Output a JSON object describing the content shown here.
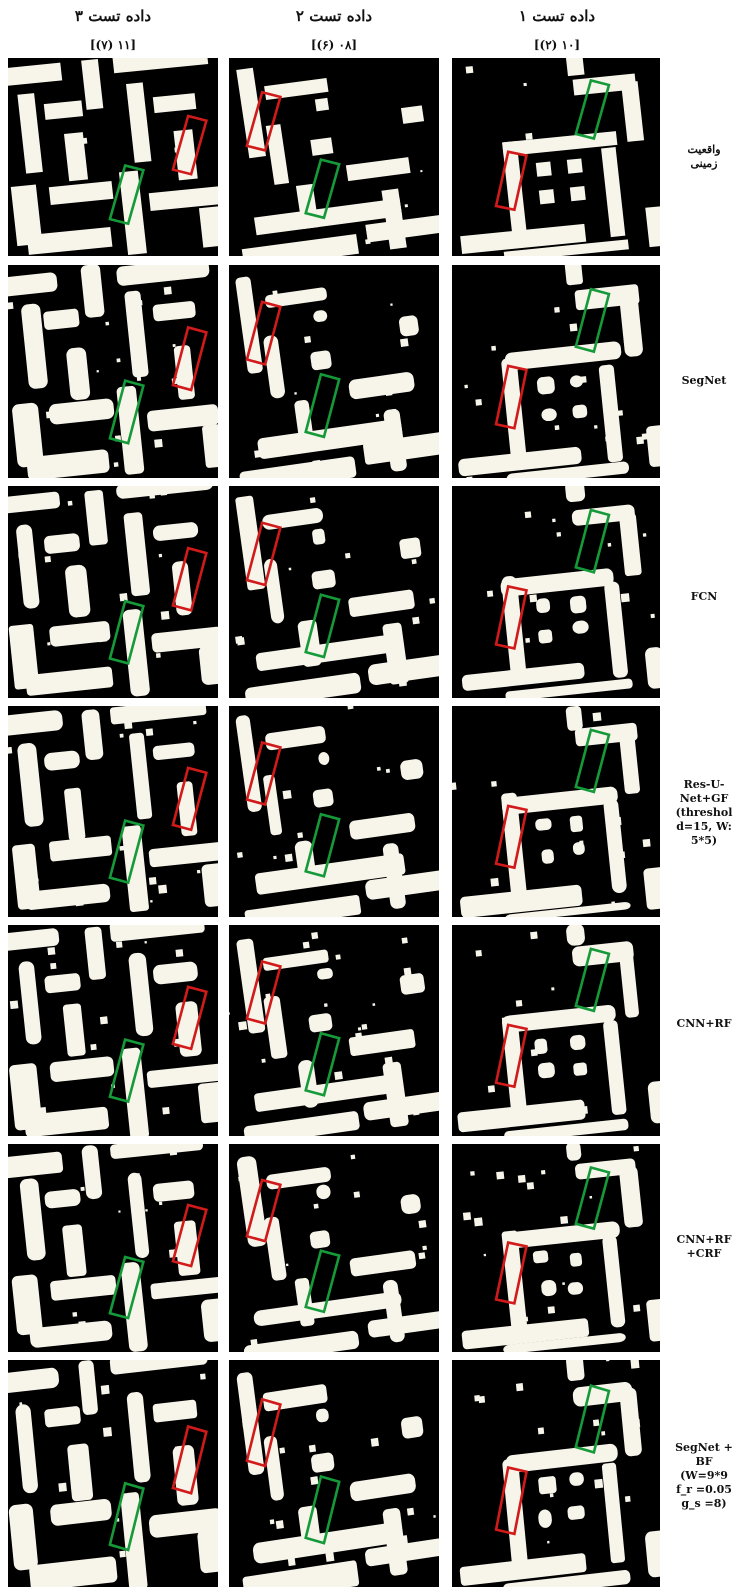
{
  "columns": [
    {
      "title": "داده تست ۳",
      "subtitle": "[(۷) ۱۱]"
    },
    {
      "title": "داده تست ۲",
      "subtitle": "[(۶) ۰۸]"
    },
    {
      "title": "داده تست ۱",
      "subtitle": "[(۲) ۱۰]"
    }
  ],
  "rows": [
    {
      "label": "واقعیت\nزمینی"
    },
    {
      "label": "SegNet"
    },
    {
      "label": "FCN"
    },
    {
      "label": "Res-U-\nNet+GF\n(threshol\nd=15, W:\n5*5)"
    },
    {
      "label": "CNN+RF"
    },
    {
      "label": "CNN+RF\n+CRF"
    },
    {
      "label": "SegNet +\nBF\n(W=9*9\nf_r =0.05\ng_s =8)"
    }
  ],
  "colors": {
    "false_positive_box": "#d11a1a",
    "correct_box": "#159a3a",
    "building": "#f7f4ea",
    "background": "#000000"
  }
}
